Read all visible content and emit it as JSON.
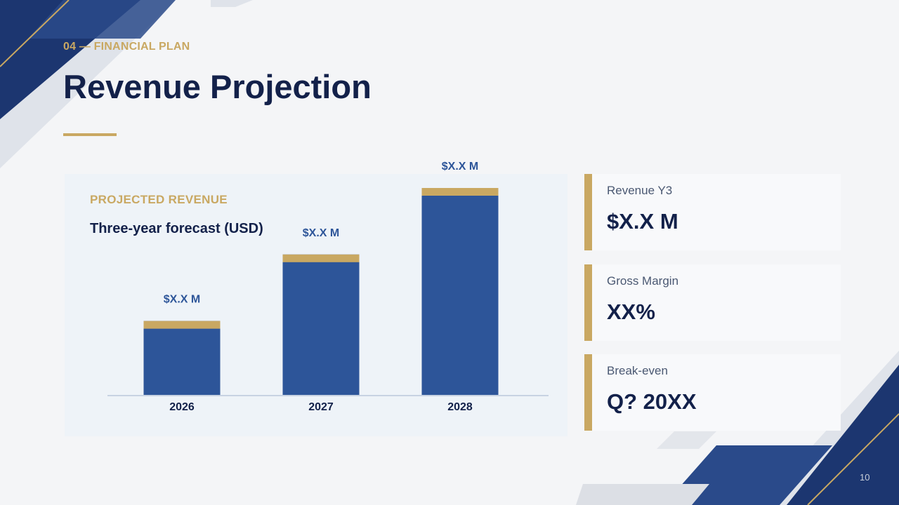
{
  "slide": {
    "section_label": "04 — FINANCIAL PLAN",
    "title": "Revenue Projection",
    "page_number": "10"
  },
  "chart_card": {
    "eyebrow": "PROJECTED REVENUE",
    "subtitle": "Three-year forecast (USD)"
  },
  "chart_data": {
    "type": "bar",
    "categories": [
      "2026",
      "2027",
      "2028"
    ],
    "values": [
      1.0,
      1.9,
      2.8
    ],
    "data_labels": [
      "$X.X M",
      "$X.X M",
      "$X.X M"
    ],
    "colors": {
      "bar": "#2d5599",
      "bar_cap": "#c9a862",
      "label": "#2d5599",
      "axis": "#c7d2e2"
    }
  },
  "kpis": [
    {
      "label": "Revenue Y3",
      "value": "$X.X M"
    },
    {
      "label": "Gross Margin",
      "value": "XX%"
    },
    {
      "label": "Break-even",
      "value": "Q? 20XX"
    }
  ],
  "theme": {
    "navy": "#13214a",
    "blue": "#1d3c78",
    "gold": "#c9a862"
  }
}
